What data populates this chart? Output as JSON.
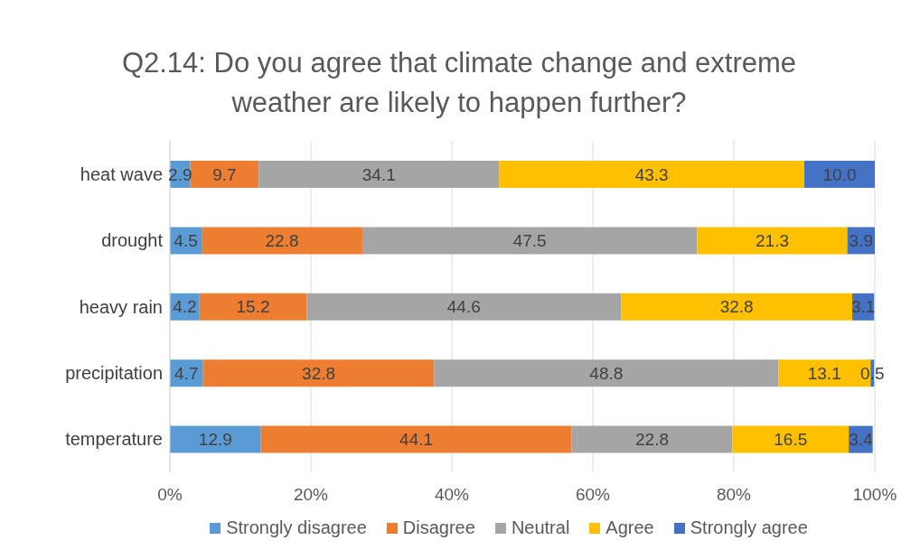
{
  "chart_data": {
    "type": "bar",
    "orientation": "horizontal",
    "stacked": true,
    "title": "Q2.14: Do you agree that climate change and extreme weather are likely to happen further?",
    "categories": [
      "heat wave",
      "drought",
      "heavy rain",
      "precipitation",
      "temperature"
    ],
    "series": [
      {
        "name": "Strongly disagree",
        "color": "#5b9bd5",
        "values": [
          2.9,
          4.5,
          4.2,
          4.7,
          12.9
        ],
        "value_labels": [
          "2.9",
          "4.5",
          "4.2",
          "4.7",
          "12.9"
        ]
      },
      {
        "name": "Disagree",
        "color": "#ed7d31",
        "values": [
          9.7,
          22.8,
          15.2,
          32.8,
          44.1
        ],
        "value_labels": [
          "9.7",
          "22.8",
          "15.2",
          "32.8",
          "44.1"
        ]
      },
      {
        "name": "Neutral",
        "color": "#a5a5a5",
        "values": [
          34.1,
          47.5,
          44.6,
          48.8,
          22.8
        ],
        "value_labels": [
          "34.1",
          "47.5",
          "44.6",
          "48.8",
          "22.8"
        ]
      },
      {
        "name": "Agree",
        "color": "#ffc000",
        "values": [
          43.3,
          21.3,
          32.8,
          13.1,
          16.5
        ],
        "value_labels": [
          "43.3",
          "21.3",
          "32.8",
          "13.1",
          "16.5"
        ]
      },
      {
        "name": "Strongly agree",
        "color": "#4472c4",
        "values": [
          10.0,
          3.9,
          3.1,
          0.5,
          3.4
        ],
        "value_labels": [
          "10.0",
          "3.9",
          "3.1",
          "0.5",
          "3.4"
        ]
      }
    ],
    "xlim": [
      0,
      100
    ],
    "xticks": [
      {
        "value": 0,
        "label": "0%"
      },
      {
        "value": 20,
        "label": "20%"
      },
      {
        "value": 40,
        "label": "40%"
      },
      {
        "value": 60,
        "label": "60%"
      },
      {
        "value": 80,
        "label": "80%"
      },
      {
        "value": 100,
        "label": "100%"
      }
    ],
    "grid": "x",
    "legend": "bottom"
  }
}
